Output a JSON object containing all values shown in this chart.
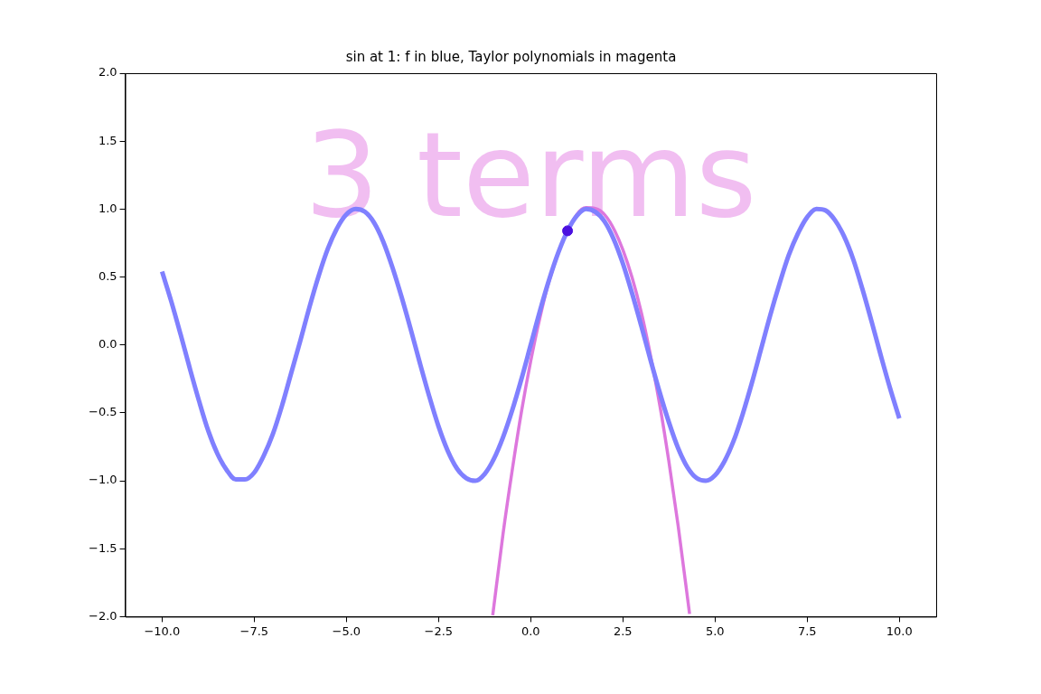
{
  "chart_data": {
    "type": "line",
    "title": "sin at 1: f in blue, Taylor polynomials in magenta",
    "annotations": [
      "3 terms"
    ],
    "xlim": [
      -11,
      11
    ],
    "ylim": [
      -2,
      2
    ],
    "xticks": [
      {
        "value": -10,
        "label": "−10.0"
      },
      {
        "value": -7.5,
        "label": "−7.5"
      },
      {
        "value": -5,
        "label": "−5.0"
      },
      {
        "value": -2.5,
        "label": "−2.5"
      },
      {
        "value": 0,
        "label": "0.0"
      },
      {
        "value": 2.5,
        "label": "2.5"
      },
      {
        "value": 5,
        "label": "5.0"
      },
      {
        "value": 7.5,
        "label": "7.5"
      },
      {
        "value": 10,
        "label": "10.0"
      }
    ],
    "yticks": [
      {
        "value": -2,
        "label": "−2.0"
      },
      {
        "value": -1.5,
        "label": "−1.5"
      },
      {
        "value": -1,
        "label": "−1.0"
      },
      {
        "value": -0.5,
        "label": "−0.5"
      },
      {
        "value": 0,
        "label": "0.0"
      },
      {
        "value": 0.5,
        "label": "0.5"
      },
      {
        "value": 1,
        "label": "1.0"
      },
      {
        "value": 1.5,
        "label": "1.5"
      },
      {
        "value": 2,
        "label": "2.0"
      }
    ],
    "grid": false,
    "legend": false,
    "series": [
      {
        "type": "line",
        "color": "#8080ff",
        "x": [
          -10,
          -9.75,
          -9.5,
          -9.25,
          -9,
          -8.75,
          -8.5,
          -8.25,
          -8,
          -7.75,
          -7.5,
          -7.25,
          -7,
          -6.75,
          -6.5,
          -6.25,
          -6,
          -5.75,
          -5.5,
          -5.25,
          -5,
          -4.75,
          -4.5,
          -4.25,
          -4,
          -3.75,
          -3.5,
          -3.25,
          -3,
          -2.75,
          -2.5,
          -2.25,
          -2,
          -1.75,
          -1.5,
          -1.25,
          -1,
          -0.75,
          -0.5,
          -0.25,
          0,
          0.25,
          0.5,
          0.75,
          1,
          1.25,
          1.5,
          1.75,
          2,
          2.25,
          2.5,
          2.75,
          3,
          3.25,
          3.5,
          3.75,
          4,
          4.25,
          4.5,
          4.75,
          5,
          5.25,
          5.5,
          5.75,
          6,
          6.25,
          6.5,
          6.75,
          7,
          7.25,
          7.5,
          7.75,
          8,
          8.25,
          8.5,
          8.75,
          9,
          9.25,
          9.5,
          9.75,
          10
        ],
        "values": [
          0.54,
          0.32,
          0.08,
          -0.17,
          -0.41,
          -0.63,
          -0.8,
          -0.92,
          -0.99,
          -0.99,
          -0.94,
          -0.82,
          -0.66,
          -0.45,
          -0.21,
          0.03,
          0.28,
          0.51,
          0.71,
          0.86,
          0.96,
          1.0,
          0.98,
          0.9,
          0.76,
          0.57,
          0.35,
          0.11,
          -0.14,
          -0.38,
          -0.6,
          -0.78,
          -0.91,
          -0.98,
          -1.0,
          -0.95,
          -0.84,
          -0.68,
          -0.48,
          -0.25,
          0,
          0.25,
          0.48,
          0.68,
          0.84,
          0.95,
          1.0,
          0.98,
          0.91,
          0.78,
          0.6,
          0.38,
          0.14,
          -0.11,
          -0.35,
          -0.57,
          -0.76,
          -0.9,
          -0.98,
          -1.0,
          -0.96,
          -0.86,
          -0.71,
          -0.51,
          -0.28,
          -0.03,
          0.22,
          0.45,
          0.66,
          0.82,
          0.94,
          1.0,
          0.99,
          0.92,
          0.8,
          0.63,
          0.41,
          0.17,
          -0.08,
          -0.32,
          -0.54
        ]
      },
      {
        "type": "line",
        "color": "#dd77dd",
        "x": [
          -1.03,
          -0.75,
          -0.5,
          -0.25,
          0,
          0.25,
          0.5,
          1,
          1.5,
          2,
          2.5,
          3,
          3.5,
          3.75,
          4,
          4.31
        ],
        "values": [
          -1.99,
          -1.39,
          -0.92,
          -0.49,
          -0.12,
          0.2,
          0.47,
          0.84,
          1.01,
          0.96,
          0.7,
          0.24,
          -0.44,
          -0.86,
          -1.33,
          -1.98
        ]
      },
      {
        "type": "scatter",
        "color": "#4b10e0",
        "marker": "circle",
        "x": [
          1
        ],
        "values": [
          0.84
        ]
      }
    ]
  }
}
